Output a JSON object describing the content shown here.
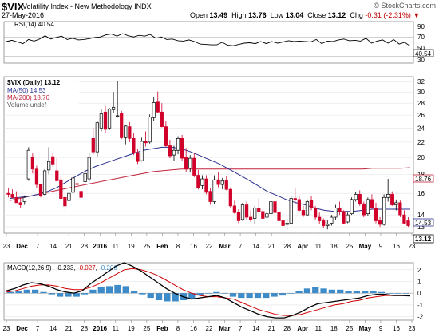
{
  "header": {
    "symbol": "$VIX",
    "name": "Volatility Index - New Methodology INDX",
    "date": "27-May-2016",
    "copyright": "© StockCharts.com",
    "open_label": "Open",
    "open": "13.49",
    "high_label": "High",
    "high": "13.76",
    "low_label": "Low",
    "low": "13.04",
    "close_label": "Close",
    "close": "13.12",
    "chg_label": "Chg",
    "chg": "-0.31 (-2.31%)",
    "chg_icon": "down-triangle-icon"
  },
  "colors": {
    "up": "#000000",
    "down": "#d0002a",
    "ma50": "#2b2f8f",
    "ma200": "#c0223b",
    "macd": "#000000",
    "signal": "#d00000",
    "hist": "#3d8cc9",
    "rsi": "#000000",
    "grid": "#d8d8d8"
  },
  "chart_data": [
    {
      "type": "line",
      "title": "RSI(14) 40.54",
      "ylim": [
        0,
        100
      ],
      "ticks": [
        "30",
        "50",
        "70",
        "90"
      ],
      "badge": "40.54",
      "values": [
        52,
        55,
        51,
        47,
        57,
        53,
        58,
        66,
        58,
        62,
        65,
        57,
        60,
        56,
        57,
        59,
        62,
        63,
        68,
        70,
        65,
        71,
        66,
        63,
        67,
        65,
        69,
        60,
        63,
        57,
        58,
        54,
        53,
        56,
        52,
        46,
        45,
        44,
        44,
        50,
        43,
        42,
        45,
        48,
        49,
        47,
        52,
        47,
        52,
        48,
        51,
        54,
        52,
        53,
        52,
        51,
        57,
        47,
        53,
        52,
        56,
        58,
        54,
        55,
        53,
        60,
        48,
        53,
        56,
        48,
        57,
        46,
        50,
        41
      ]
    },
    {
      "type": "candlestick",
      "title": "$VIX (Daily) 13.12",
      "legend": [
        "MA(50) 14.53",
        "MA(200) 18.76",
        "Volume undef"
      ],
      "scale": "log",
      "ylim": [
        12.5,
        33
      ],
      "yticks": [
        "13",
        "14",
        "16",
        "18",
        "20",
        "22",
        "24",
        "26",
        "28",
        "30",
        "32"
      ],
      "badges": [
        "18.76",
        "14.53",
        "13.12"
      ],
      "x_labels": [
        "23",
        "Dec",
        "7",
        "14",
        "21",
        "28",
        "2016",
        "11",
        "19",
        "25",
        "Feb",
        "8",
        "16",
        "22",
        "Mar",
        "7",
        "14",
        "21",
        "28",
        "Apr",
        "11",
        "18",
        "25",
        "May",
        "9",
        "16",
        "23"
      ],
      "candles": [
        [
          16.0,
          16.5,
          15.6,
          15.9
        ],
        [
          15.9,
          16.4,
          15.5,
          15.6
        ],
        [
          15.6,
          16.2,
          15.2,
          15.1
        ],
        [
          15.1,
          15.6,
          14.6,
          14.9
        ],
        [
          15.2,
          15.8,
          14.9,
          15.6
        ],
        [
          17.5,
          21.3,
          17.3,
          20.9
        ],
        [
          20.0,
          20.5,
          18.1,
          18.6
        ],
        [
          18.6,
          19.0,
          16.5,
          16.9
        ],
        [
          16.9,
          17.0,
          15.6,
          15.8
        ],
        [
          15.9,
          18.6,
          15.8,
          18.4
        ],
        [
          18.5,
          21.3,
          18.0,
          19.5
        ],
        [
          20.1,
          20.5,
          18.9,
          19.2
        ],
        [
          18.4,
          19.9,
          17.2,
          17.3
        ],
        [
          17.4,
          17.8,
          15.2,
          15.5
        ],
        [
          15.6,
          16.1,
          14.2,
          14.8
        ],
        [
          15.3,
          16.2,
          15.0,
          16.0
        ],
        [
          16.1,
          17.8,
          15.9,
          17.6
        ],
        [
          17.0,
          17.9,
          16.5,
          16.9
        ],
        [
          16.2,
          16.7,
          15.0,
          15.6
        ],
        [
          17.2,
          18.5,
          17.0,
          18.1
        ],
        [
          17.5,
          20.5,
          17.2,
          20.0
        ],
        [
          22.5,
          24.0,
          20.4,
          20.7
        ],
        [
          20.7,
          25.0,
          20.1,
          24.8
        ],
        [
          24.0,
          27.0,
          23.5,
          26.2
        ],
        [
          26.5,
          27.5,
          23.3,
          23.8
        ],
        [
          24.0,
          27.2,
          23.7,
          27.0
        ],
        [
          26.9,
          30.0,
          26.3,
          27.3
        ],
        [
          25.8,
          32.1,
          25.6,
          25.9
        ],
        [
          26.3,
          26.7,
          22.4,
          22.6
        ],
        [
          22.6,
          24.5,
          21.7,
          24.3
        ],
        [
          24.2,
          24.9,
          22.0,
          22.5
        ],
        [
          22.5,
          23.2,
          20.3,
          20.6
        ],
        [
          20.6,
          21.1,
          19.2,
          19.5
        ],
        [
          19.6,
          22.6,
          19.5,
          22.1
        ],
        [
          22.1,
          23.5,
          21.4,
          21.9
        ],
        [
          22.0,
          26.1,
          21.8,
          25.7
        ],
        [
          25.6,
          29.0,
          25.1,
          28.1
        ],
        [
          28.2,
          30.1,
          26.3,
          26.5
        ],
        [
          26.5,
          28.0,
          24.1,
          24.2
        ],
        [
          24.2,
          25.0,
          21.3,
          21.5
        ],
        [
          21.5,
          22.3,
          19.9,
          20.2
        ],
        [
          20.3,
          21.5,
          19.6,
          20.9
        ],
        [
          20.9,
          22.8,
          20.4,
          22.5
        ],
        [
          22.5,
          23.0,
          19.6,
          19.9
        ],
        [
          20.0,
          21.2,
          18.3,
          18.6
        ],
        [
          18.7,
          20.3,
          18.2,
          19.9
        ],
        [
          19.9,
          20.6,
          17.7,
          17.9
        ],
        [
          17.9,
          18.5,
          16.4,
          16.6
        ],
        [
          16.8,
          17.9,
          16.4,
          17.5
        ],
        [
          17.5,
          17.9,
          15.9,
          16.1
        ],
        [
          16.2,
          16.5,
          14.9,
          15.2
        ],
        [
          15.2,
          17.9,
          15.0,
          17.4
        ],
        [
          17.4,
          18.3,
          16.6,
          16.9
        ],
        [
          16.9,
          17.6,
          16.4,
          17.3
        ],
        [
          17.3,
          17.8,
          16.3,
          16.4
        ],
        [
          16.4,
          16.6,
          14.6,
          14.8
        ],
        [
          14.8,
          15.3,
          14.1,
          14.2
        ],
        [
          14.2,
          14.5,
          13.3,
          13.5
        ],
        [
          13.6,
          15.1,
          13.5,
          14.9
        ],
        [
          14.9,
          15.2,
          13.6,
          13.8
        ],
        [
          13.8,
          14.4,
          13.4,
          13.6
        ],
        [
          13.7,
          14.8,
          13.2,
          14.6
        ],
        [
          14.6,
          15.5,
          14.1,
          14.3
        ],
        [
          14.3,
          14.5,
          13.6,
          13.7
        ],
        [
          13.8,
          14.6,
          13.5,
          14.1
        ],
        [
          14.1,
          15.3,
          13.9,
          15.2
        ],
        [
          15.2,
          15.4,
          14.1,
          14.2
        ],
        [
          14.2,
          14.6,
          13.4,
          13.5
        ],
        [
          13.5,
          13.9,
          12.9,
          13.1
        ],
        [
          13.2,
          13.7,
          12.8,
          13.3
        ],
        [
          13.3,
          15.8,
          13.2,
          15.5
        ],
        [
          15.5,
          16.5,
          15.0,
          15.4
        ],
        [
          15.4,
          15.8,
          14.3,
          14.4
        ],
        [
          14.4,
          14.8,
          13.8,
          14.0
        ],
        [
          14.0,
          15.4,
          13.9,
          15.2
        ],
        [
          15.3,
          15.7,
          14.4,
          14.6
        ],
        [
          14.6,
          14.8,
          13.6,
          13.8
        ],
        [
          13.8,
          14.2,
          13.2,
          13.5
        ],
        [
          13.5,
          13.7,
          12.9,
          13.1
        ],
        [
          13.1,
          13.6,
          12.8,
          13.2
        ],
        [
          13.3,
          14.0,
          13.1,
          13.8
        ],
        [
          13.8,
          14.9,
          13.6,
          14.6
        ],
        [
          14.6,
          15.2,
          14.0,
          14.3
        ],
        [
          14.3,
          14.4,
          13.2,
          13.3
        ],
        [
          13.4,
          14.2,
          13.3,
          14.0
        ],
        [
          14.1,
          15.6,
          14.0,
          15.4
        ],
        [
          15.4,
          16.1,
          15.2,
          15.9
        ],
        [
          15.9,
          16.3,
          14.8,
          15.0
        ],
        [
          15.0,
          15.2,
          13.8,
          14.0
        ],
        [
          14.1,
          15.6,
          13.9,
          15.4
        ],
        [
          15.4,
          15.9,
          14.5,
          14.6
        ],
        [
          14.6,
          15.1,
          13.3,
          13.5
        ],
        [
          13.5,
          13.8,
          13.0,
          13.2
        ],
        [
          13.2,
          15.9,
          13.1,
          15.6
        ],
        [
          15.6,
          17.5,
          15.2,
          15.9
        ],
        [
          15.9,
          16.2,
          14.8,
          14.9
        ],
        [
          14.9,
          15.4,
          14.4,
          15.1
        ],
        [
          15.1,
          15.3,
          13.8,
          14.0
        ],
        [
          14.0,
          14.4,
          13.2,
          13.3
        ],
        [
          13.5,
          13.8,
          13.0,
          13.1
        ]
      ],
      "ma50": [
        15.5,
        15.6,
        15.7,
        15.9,
        16.2,
        16.6,
        17.2,
        17.8,
        18.4,
        18.9,
        19.3,
        19.7,
        20.1,
        20.5,
        20.9,
        21.1,
        21.3,
        21.3,
        21.1,
        20.7,
        20.2,
        19.7,
        19.2,
        18.6,
        18.0,
        17.4,
        16.8,
        16.2,
        15.8,
        15.4,
        15.1,
        14.9,
        14.6,
        14.4,
        14.3,
        14.3,
        14.3,
        14.4,
        14.5,
        14.5,
        14.5,
        14.5,
        14.5
      ],
      "ma200": [
        15.3,
        15.5,
        15.7,
        15.9,
        16.1,
        16.3,
        16.5,
        16.7,
        16.9,
        17.1,
        17.3,
        17.5,
        17.7,
        17.9,
        18.1,
        18.3,
        18.4,
        18.5,
        18.6,
        18.6,
        18.6,
        18.6,
        18.6,
        18.6,
        18.6,
        18.6,
        18.6,
        18.6,
        18.6,
        18.6,
        18.6,
        18.6,
        18.6,
        18.6,
        18.6,
        18.6,
        18.6,
        18.6,
        18.7,
        18.7,
        18.7,
        18.7,
        18.76
      ]
    },
    {
      "type": "line",
      "title": "MACD(12,26,9) -0.233, -0.027, -0.206",
      "title_parts": [
        "MACD(12,26,9)",
        "-0.233",
        "-0.027",
        "-0.206"
      ],
      "ylim": [
        -2.3,
        2.6
      ],
      "yticks": [
        "-2",
        "-1",
        "0",
        "1",
        "2"
      ],
      "macd": [
        0.2,
        0.4,
        0.7,
        0.9,
        0.8,
        0.6,
        0.3,
        0.1,
        0.0,
        0.2,
        0.8,
        1.3,
        1.8,
        2.3,
        2.6,
        2.3,
        1.9,
        1.4,
        0.9,
        0.4,
        0.0,
        -0.3,
        -0.5,
        -0.4,
        -0.3,
        -0.2,
        -0.4,
        -0.8,
        -1.2,
        -1.5,
        -1.8,
        -2.0,
        -2.1,
        -2.1,
        -1.9,
        -1.6,
        -1.2,
        -0.9,
        -0.8,
        -0.7,
        -0.6,
        -0.5,
        -0.4,
        -0.2,
        -0.1,
        -0.1,
        -0.2,
        -0.2,
        -0.233
      ],
      "signal": [
        0.1,
        0.2,
        0.4,
        0.6,
        0.7,
        0.7,
        0.6,
        0.4,
        0.3,
        0.3,
        0.5,
        0.8,
        1.2,
        1.6,
        2.0,
        2.1,
        2.0,
        1.8,
        1.5,
        1.1,
        0.7,
        0.3,
        0.0,
        -0.2,
        -0.3,
        -0.3,
        -0.4,
        -0.5,
        -0.8,
        -1.1,
        -1.4,
        -1.6,
        -1.8,
        -1.9,
        -1.9,
        -1.8,
        -1.6,
        -1.4,
        -1.2,
        -1.0,
        -0.9,
        -0.7,
        -0.6,
        -0.4,
        -0.3,
        -0.2,
        -0.2,
        -0.2,
        -0.206
      ],
      "hist": [
        0.1,
        0.2,
        0.3,
        0.3,
        0.1,
        -0.1,
        -0.3,
        -0.3,
        -0.3,
        -0.1,
        0.3,
        0.5,
        0.6,
        0.7,
        0.6,
        0.2,
        -0.1,
        -0.4,
        -0.6,
        -0.7,
        -0.7,
        -0.6,
        -0.5,
        -0.2,
        0.0,
        0.1,
        0.0,
        -0.3,
        -0.4,
        -0.4,
        -0.4,
        -0.4,
        -0.3,
        -0.2,
        0.0,
        0.2,
        0.4,
        0.5,
        0.4,
        0.3,
        0.3,
        0.2,
        0.2,
        0.2,
        0.2,
        0.1,
        0.0,
        0.0,
        -0.027
      ]
    }
  ]
}
